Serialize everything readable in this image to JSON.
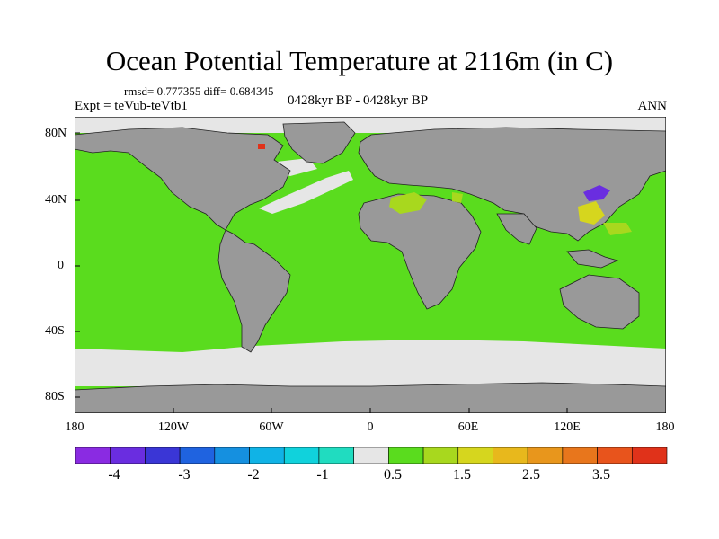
{
  "title": "Ocean Potential Temperature at 2116m (in C)",
  "stats": "rmsd= 0.777355 diff= 0.684345",
  "experiment": "Expt = teVub-teVtb1",
  "period": "0428kyr BP - 0428kyr BP",
  "season": "ANN",
  "lat_labels": [
    "80N",
    "40N",
    "0",
    "40S",
    "80S"
  ],
  "lon_labels": [
    "180",
    "120W",
    "60W",
    "0",
    "60E",
    "120E",
    "180"
  ],
  "colorbar": {
    "colors": [
      "#8a2be2",
      "#6a2de0",
      "#3a36d6",
      "#1f63e0",
      "#1590e0",
      "#10b3e6",
      "#10d2dc",
      "#20dcc0",
      "#e6e6e6",
      "#5adc1e",
      "#a8d81e",
      "#d6d61e",
      "#e8b81c",
      "#e8961c",
      "#e8761c",
      "#e8541c",
      "#e0321a"
    ],
    "labels": [
      "-4",
      "-3",
      "-2",
      "-1",
      "0.5",
      "1.5",
      "2.5",
      "3.5"
    ]
  },
  "legend_colors": {
    "land": "#999999",
    "ocean_near_zero": "#e6e6e6",
    "ocean_warm": "#5adc1e"
  }
}
